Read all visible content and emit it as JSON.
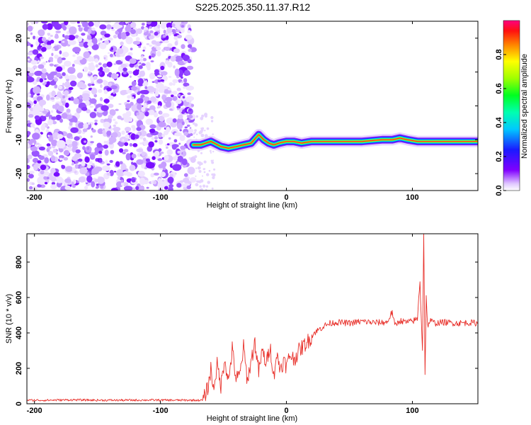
{
  "title": "S225.2025.350.11.37.R12",
  "chart_data": [
    {
      "type": "heatmap",
      "xlabel": "Height of straight line (km)",
      "ylabel": "Frequency (Hz)",
      "xlim": [
        -206,
        152
      ],
      "ylim": [
        -25,
        25
      ],
      "x_ticks": [
        -200,
        -100,
        0,
        100
      ],
      "y_ticks": [
        -20,
        -10,
        0,
        10,
        20
      ],
      "colorbar": {
        "label": "Normalized spectral amplitude",
        "range": [
          0,
          1
        ],
        "ticks": [
          0.0,
          0.2,
          0.4,
          0.6,
          0.8
        ]
      },
      "noise_region_x": [
        -206,
        -74
      ],
      "signal_trace": {
        "x": [
          -74,
          -68,
          -60,
          -52,
          -46,
          -40,
          -34,
          -28,
          -22,
          -18,
          -14,
          -10,
          -6,
          0,
          6,
          12,
          20,
          40,
          60,
          76,
          84,
          90,
          96,
          104,
          110,
          120,
          140,
          152
        ],
        "y": [
          -11.5,
          -11.5,
          -10.5,
          -12,
          -12.5,
          -12,
          -11.5,
          -11,
          -8.5,
          -10,
          -11,
          -11.5,
          -11,
          -10.5,
          -10.5,
          -11,
          -10.5,
          -10.5,
          -10.5,
          -10,
          -10,
          -9.5,
          -10,
          -10.5,
          -10.5,
          -10.5,
          -10.5,
          -10.5
        ]
      }
    },
    {
      "type": "line",
      "xlabel": "Height of straight line (km)",
      "ylabel": "SNR (10 * v/v)",
      "xlim": [
        -206,
        152
      ],
      "ylim": [
        0,
        960
      ],
      "x_ticks": [
        -200,
        -100,
        0,
        100
      ],
      "y_ticks": [
        0,
        200,
        400,
        600,
        800
      ],
      "series": [
        {
          "color": "#e8302a",
          "x": [
            -206,
            -190,
            -170,
            -150,
            -130,
            -110,
            -90,
            -75,
            -66,
            -62,
            -60,
            -58,
            -55,
            -52,
            -49,
            -46,
            -43,
            -40,
            -37,
            -34,
            -31,
            -28,
            -25,
            -22,
            -19,
            -16,
            -13,
            -10,
            -8,
            -5,
            -2,
            0,
            3,
            6,
            10,
            14,
            18,
            22,
            26,
            30,
            35,
            40,
            50,
            60,
            70,
            80,
            84,
            86,
            90,
            95,
            100,
            104,
            106,
            108,
            109,
            110,
            111,
            112,
            114,
            118,
            125,
            135,
            145,
            152
          ],
          "y": [
            20,
            20,
            22,
            20,
            20,
            21,
            20,
            20,
            20,
            100,
            200,
            80,
            220,
            100,
            260,
            120,
            310,
            140,
            160,
            320,
            130,
            240,
            350,
            180,
            300,
            220,
            330,
            150,
            280,
            200,
            240,
            210,
            280,
            250,
            300,
            330,
            360,
            400,
            420,
            440,
            455,
            460,
            455,
            465,
            458,
            460,
            520,
            440,
            470,
            460,
            465,
            480,
            700,
            300,
            960,
            170,
            600,
            440,
            470,
            455,
            460,
            455,
            458,
            455
          ]
        }
      ]
    }
  ]
}
